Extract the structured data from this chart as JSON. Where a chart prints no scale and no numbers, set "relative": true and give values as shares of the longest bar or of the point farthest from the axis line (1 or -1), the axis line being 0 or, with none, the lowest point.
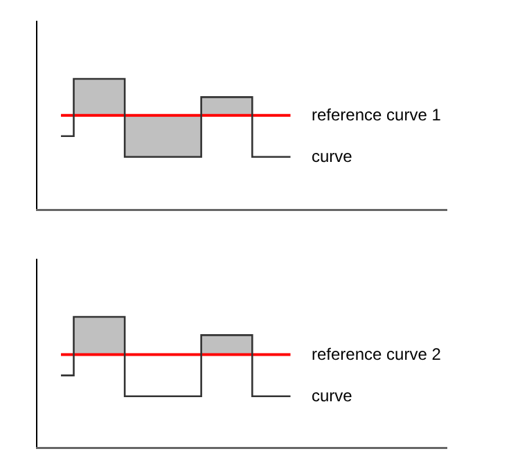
{
  "chart_data": [
    {
      "type": "step",
      "relative": true,
      "categories": [
        null,
        null,
        null,
        null,
        null,
        null,
        null,
        null,
        null,
        null,
        null,
        null,
        null,
        null,
        null,
        null,
        null,
        null,
        null
      ],
      "grid": false,
      "legend": false,
      "series": [
        {
          "name": "curve",
          "color": "#333333",
          "values": [
            0.56,
            1,
            1,
            1,
            1,
            0.4,
            0.4,
            0.4,
            0.4,
            0.4,
            0.4,
            0.86,
            0.86,
            0.86,
            0.86,
            0.4,
            0.4,
            0.4,
            0.4
          ],
          "lower": [
            null,
            0.72,
            0.72,
            0.72,
            0.72,
            0.4,
            0.4,
            0.4,
            0.4,
            0.4,
            0.4,
            0.72,
            0.72,
            0.72,
            0.72,
            0.72,
            null,
            null,
            null
          ],
          "upper": [
            null,
            1,
            1,
            1,
            1,
            0.72,
            0.72,
            0.72,
            0.72,
            0.72,
            0.72,
            0.86,
            0.86,
            0.86,
            0.86,
            0.86,
            null,
            null,
            null
          ]
        }
      ],
      "ref_lines": [
        {
          "axis": "y",
          "value": 0.72,
          "label": "reference curve 1",
          "color": "#ff0000"
        }
      ]
    },
    {
      "type": "step",
      "relative": true,
      "categories": [
        null,
        null,
        null,
        null,
        null,
        null,
        null,
        null,
        null,
        null,
        null,
        null,
        null,
        null,
        null,
        null,
        null,
        null,
        null
      ],
      "grid": false,
      "legend": false,
      "series": [
        {
          "name": "curve",
          "color": "#333333",
          "values": [
            0.55,
            1,
            1,
            1,
            1,
            0.39,
            0.39,
            0.39,
            0.39,
            0.39,
            0.39,
            0.86,
            0.86,
            0.86,
            0.86,
            0.39,
            0.39,
            0.39,
            0.39
          ],
          "lower": [
            null,
            0.71,
            0.71,
            0.71,
            0.71,
            0.71,
            null,
            null,
            null,
            null,
            null,
            0.71,
            0.71,
            0.71,
            0.71,
            0.71,
            null,
            null,
            null
          ],
          "upper": [
            null,
            1,
            1,
            1,
            1,
            1,
            null,
            null,
            null,
            null,
            null,
            0.86,
            0.86,
            0.86,
            0.86,
            0.86,
            null,
            null,
            null
          ]
        }
      ],
      "ref_lines": [
        {
          "axis": "y",
          "value": 0.71,
          "label": "reference curve 2",
          "color": "#ff0000"
        }
      ]
    }
  ]
}
